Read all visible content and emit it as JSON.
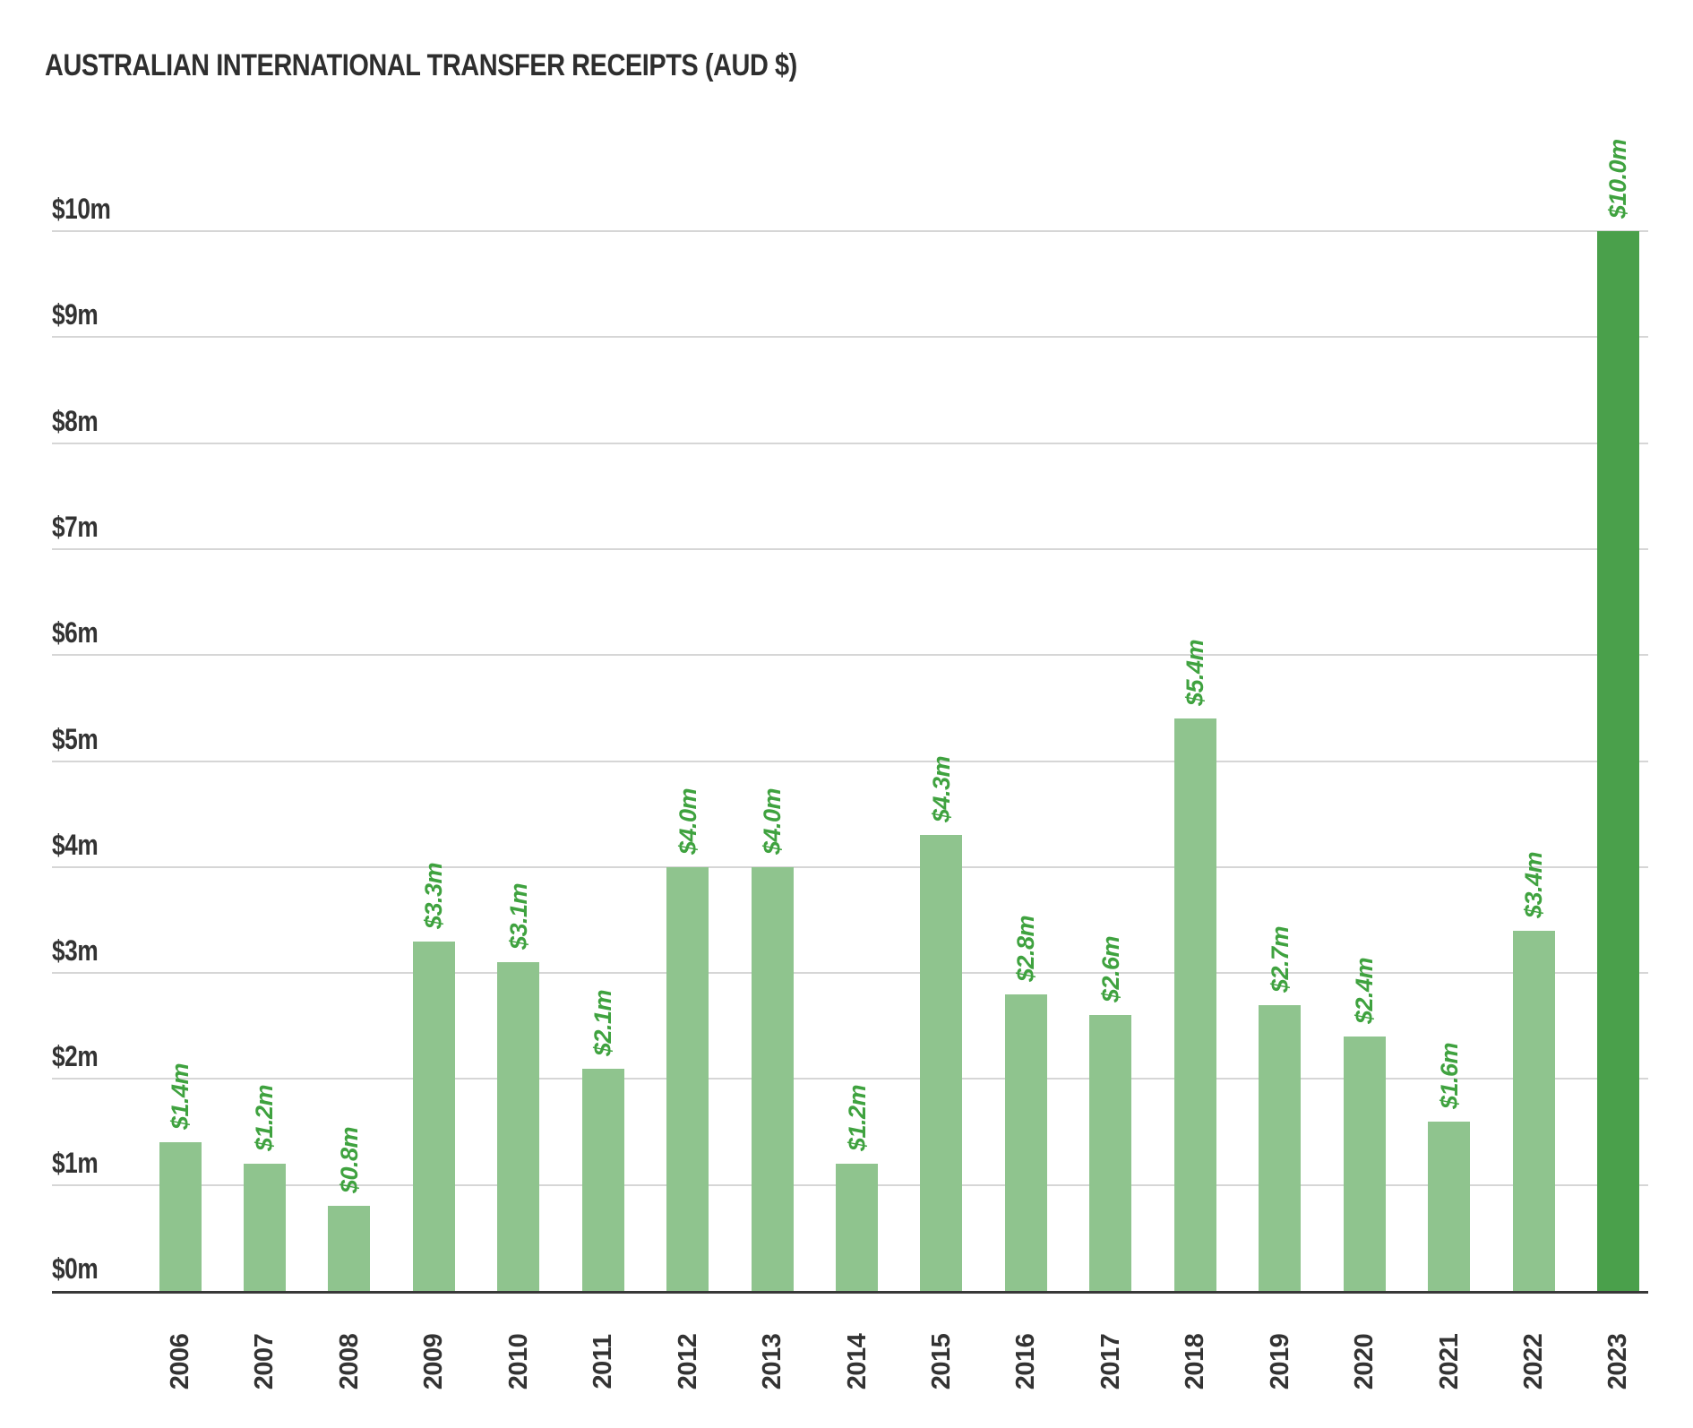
{
  "chart_data": {
    "type": "bar",
    "title": "AUSTRALIAN INTERNATIONAL TRANSFER RECEIPTS (AUD $)",
    "categories": [
      "2006",
      "2007",
      "2008",
      "2009",
      "2010",
      "2011",
      "2012",
      "2013",
      "2014",
      "2015",
      "2016",
      "2017",
      "2018",
      "2019",
      "2020",
      "2021",
      "2022",
      "2023"
    ],
    "values": [
      1.4,
      1.2,
      0.8,
      3.3,
      3.1,
      2.1,
      4.0,
      4.0,
      1.2,
      4.3,
      2.8,
      2.6,
      5.4,
      2.7,
      2.4,
      1.6,
      3.4,
      10.0
    ],
    "value_labels": [
      "$1.4m",
      "$1.2m",
      "$0.8m",
      "$3.3m",
      "$3.1m",
      "$2.1m",
      "$4.0m",
      "$4.0m",
      "$1.2m",
      "$4.3m",
      "$2.8m",
      "$2.6m",
      "$5.4m",
      "$2.7m",
      "$2.4m",
      "$1.6m",
      "$3.4m",
      "$10.0m"
    ],
    "y_tick_labels": [
      "$0m",
      "$1m",
      "$2m",
      "$3m",
      "$4m",
      "$5m",
      "$6m",
      "$7m",
      "$8m",
      "$9m",
      "$10m"
    ],
    "ylim": [
      0,
      10
    ],
    "grid": true,
    "legend": "none",
    "xlabel": "",
    "ylabel": "",
    "highlight_category": "2023",
    "colors": {
      "bar": "#8fc48e",
      "bar_highlight": "#4aa04b",
      "value_label": "#3fa23f",
      "axis_text": "#333333",
      "title_text": "#2e2e2e",
      "gridline": "#d6d6d6",
      "baseline": "#383838",
      "background": "#ffffff"
    }
  }
}
